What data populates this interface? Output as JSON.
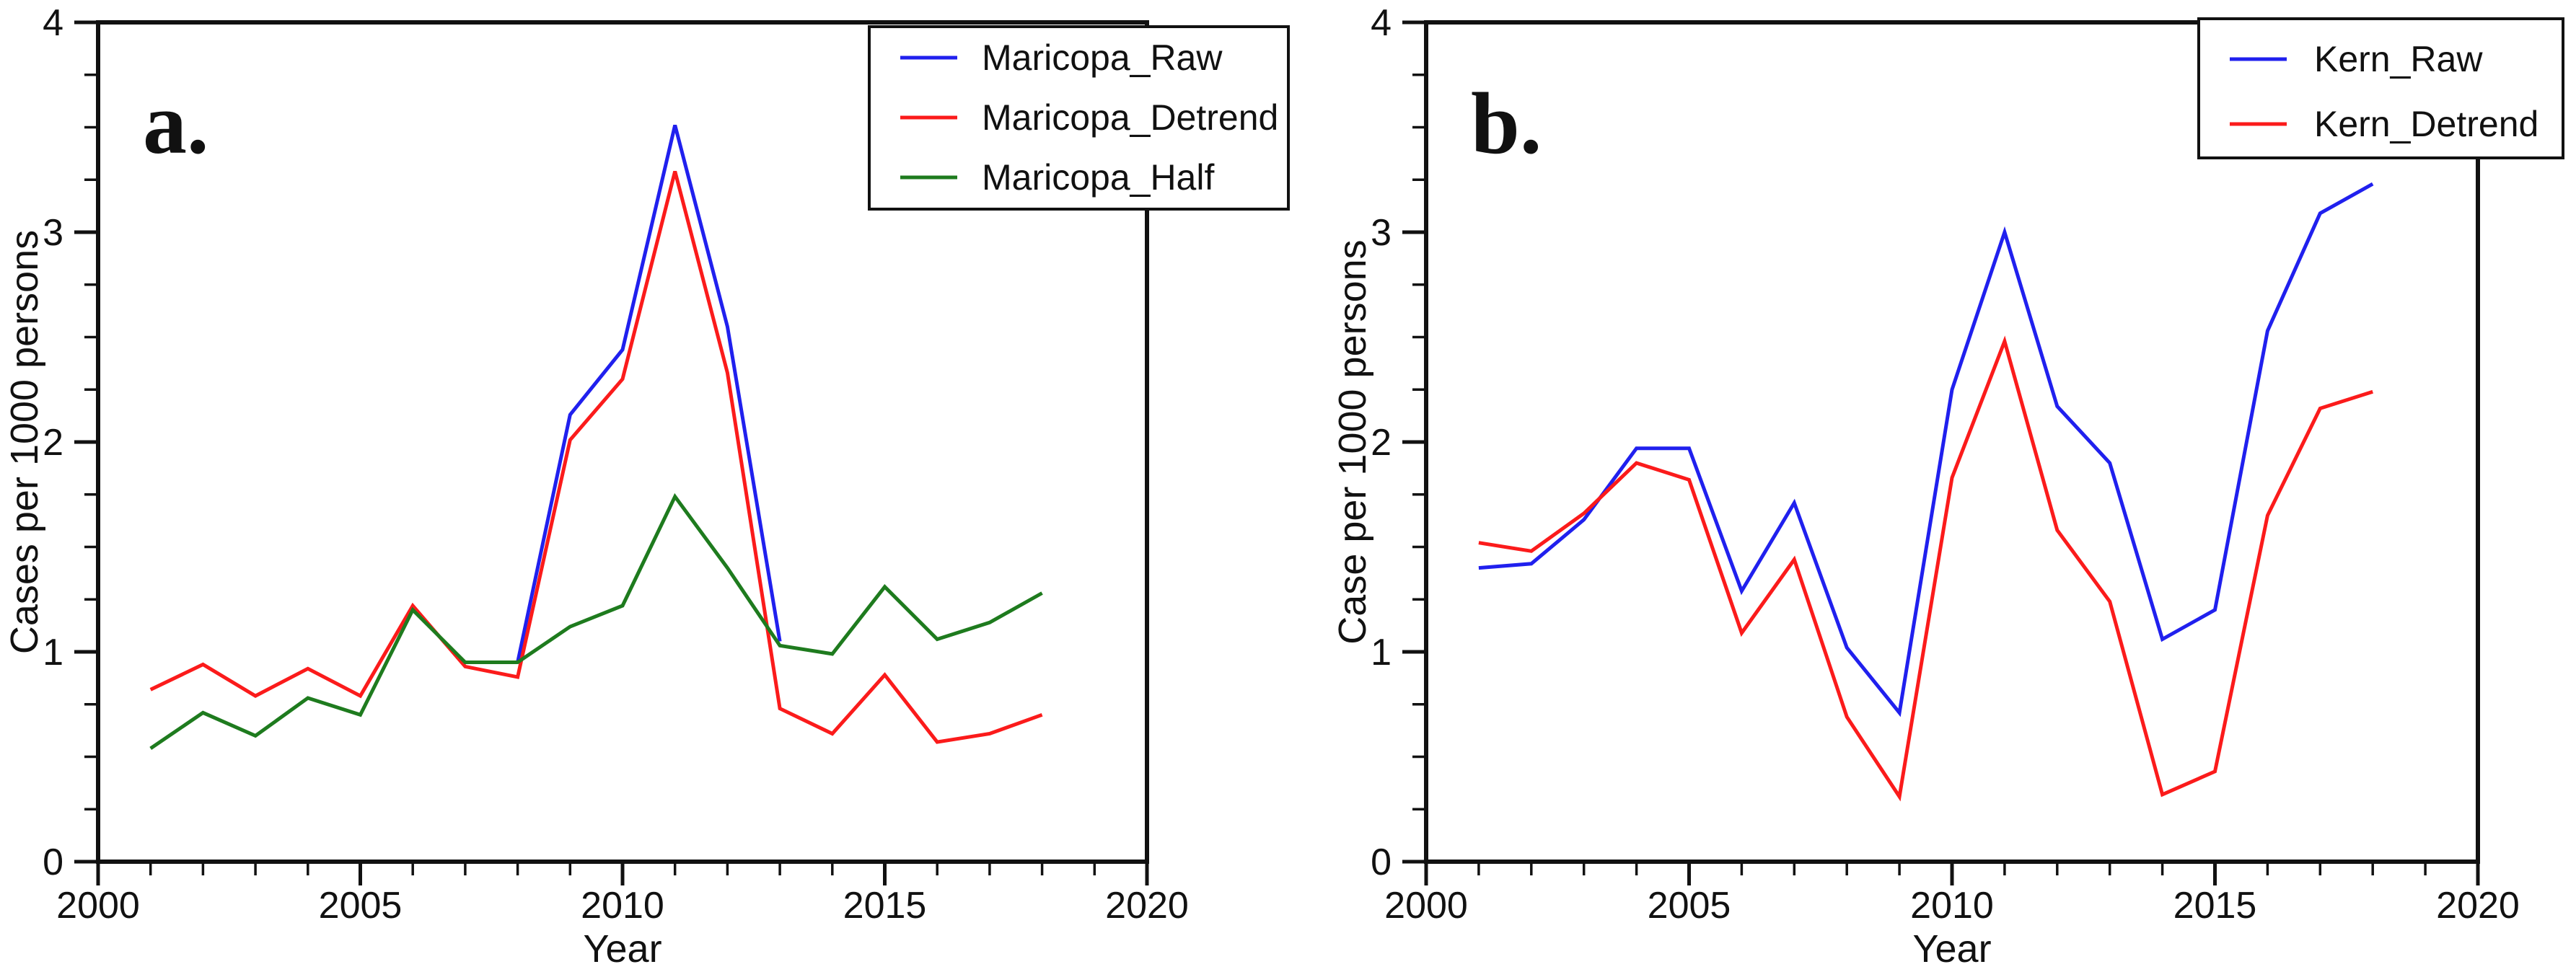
{
  "figure": {
    "background": "#ffffff",
    "axis_color": "#111111"
  },
  "chart_data": [
    {
      "panel": "a",
      "type": "line",
      "letter": "a.",
      "xlabel": "Year",
      "ylabel": "Cases per 1000 persons",
      "xlim": [
        2000,
        2020
      ],
      "ylim": [
        0,
        4
      ],
      "xticks": [
        2000,
        2005,
        2010,
        2015,
        2020
      ],
      "yticks": [
        0,
        1,
        2,
        3,
        4
      ],
      "x_minor_interval": 1,
      "y_minor_interval": 0.25,
      "grid": false,
      "legend_position": "upper right",
      "x": [
        2001,
        2002,
        2003,
        2004,
        2005,
        2006,
        2007,
        2008,
        2009,
        2010,
        2011,
        2012,
        2013,
        2014,
        2015,
        2016,
        2017,
        2018
      ],
      "series": [
        {
          "name": "Maricopa_Raw",
          "color": "#2020ee",
          "values": [
            null,
            null,
            null,
            null,
            null,
            null,
            null,
            0.95,
            2.13,
            2.44,
            3.51,
            2.55,
            1.05,
            null,
            null,
            null,
            null,
            null
          ]
        },
        {
          "name": "Maricopa_Detrend",
          "color": "#fb1b1b",
          "values": [
            0.82,
            0.94,
            0.79,
            0.92,
            0.79,
            1.22,
            0.93,
            0.88,
            2.01,
            2.3,
            3.29,
            2.33,
            0.73,
            0.61,
            0.89,
            0.57,
            0.61,
            0.7
          ]
        },
        {
          "name": "Maricopa_Half",
          "color": "#1e7b1e",
          "values": [
            0.54,
            0.71,
            0.6,
            0.78,
            0.7,
            1.2,
            0.95,
            0.95,
            1.12,
            1.22,
            1.74,
            1.4,
            1.03,
            0.99,
            1.31,
            1.06,
            1.14,
            1.28
          ]
        }
      ]
    },
    {
      "panel": "b",
      "type": "line",
      "letter": "b.",
      "xlabel": "Year",
      "ylabel": "Case per 1000 persons",
      "xlim": [
        2000,
        2020
      ],
      "ylim": [
        0,
        4
      ],
      "xticks": [
        2000,
        2005,
        2010,
        2015,
        2020
      ],
      "yticks": [
        0,
        1,
        2,
        3,
        4
      ],
      "x_minor_interval": 1,
      "y_minor_interval": 0.25,
      "grid": false,
      "legend_position": "upper right",
      "x": [
        2001,
        2002,
        2003,
        2004,
        2005,
        2006,
        2007,
        2008,
        2009,
        2010,
        2011,
        2012,
        2013,
        2014,
        2015,
        2016,
        2017,
        2018
      ],
      "series": [
        {
          "name": "Kern_Raw",
          "color": "#2020ee",
          "values": [
            1.4,
            1.42,
            1.63,
            1.97,
            1.97,
            1.29,
            1.71,
            1.02,
            0.71,
            2.25,
            3.0,
            2.17,
            1.9,
            1.06,
            1.2,
            2.53,
            3.09,
            3.23
          ]
        },
        {
          "name": "Kern_Detrend",
          "color": "#fb1b1b",
          "values": [
            1.52,
            1.48,
            1.66,
            1.9,
            1.82,
            1.09,
            1.44,
            0.69,
            0.31,
            1.83,
            2.48,
            1.58,
            1.24,
            0.32,
            0.43,
            1.65,
            2.16,
            2.24
          ]
        }
      ]
    }
  ]
}
